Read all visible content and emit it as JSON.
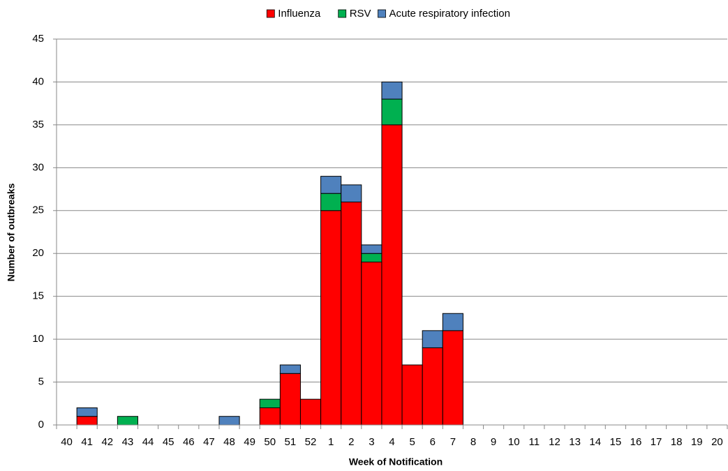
{
  "chart_data": {
    "type": "stacked-bar",
    "x_label": "Week of Notification",
    "y_label": "Number of outbreaks",
    "categories": [
      "40",
      "41",
      "42",
      "43",
      "44",
      "45",
      "46",
      "47",
      "48",
      "49",
      "50",
      "51",
      "52",
      "1",
      "2",
      "3",
      "4",
      "5",
      "6",
      "7",
      "8",
      "9",
      "10",
      "11",
      "12",
      "13",
      "14",
      "15",
      "16",
      "17",
      "18",
      "19",
      "20"
    ],
    "series": [
      {
        "name": "Influenza",
        "color": "#ff0000",
        "values": [
          0,
          1,
          0,
          0,
          0,
          0,
          0,
          0,
          0,
          0,
          2,
          6,
          3,
          25,
          26,
          19,
          35,
          7,
          9,
          11,
          0,
          0,
          0,
          0,
          0,
          0,
          0,
          0,
          0,
          0,
          0,
          0,
          0
        ]
      },
      {
        "name": "RSV",
        "color": "#00b050",
        "values": [
          0,
          0,
          0,
          1,
          0,
          0,
          0,
          0,
          0,
          0,
          1,
          0,
          0,
          2,
          0,
          1,
          3,
          0,
          0,
          0,
          0,
          0,
          0,
          0,
          0,
          0,
          0,
          0,
          0,
          0,
          0,
          0,
          0
        ]
      },
      {
        "name": "Acute respiratory infection",
        "color": "#4f81bd",
        "values": [
          0,
          1,
          0,
          0,
          0,
          0,
          0,
          0,
          1,
          0,
          0,
          1,
          0,
          2,
          2,
          1,
          2,
          0,
          2,
          2,
          0,
          0,
          0,
          0,
          0,
          0,
          0,
          0,
          0,
          0,
          0,
          0,
          0
        ]
      }
    ],
    "ylim": [
      0,
      45
    ],
    "yticks": [
      0,
      5,
      10,
      15,
      20,
      25,
      30,
      35,
      40,
      45
    ],
    "grid": true,
    "legend": "top"
  }
}
